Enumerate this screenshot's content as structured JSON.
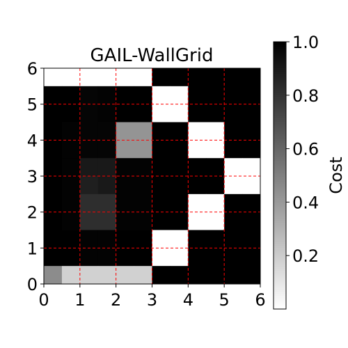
{
  "chart_data": {
    "type": "heatmap",
    "title": "GAIL-WallGrid",
    "xlabel": "",
    "ylabel": "",
    "xlim": [
      0,
      6
    ],
    "ylim": [
      0,
      6
    ],
    "x_ticks": [
      "0",
      "1",
      "2",
      "3",
      "4",
      "5",
      "6"
    ],
    "y_ticks": [
      "0",
      "1",
      "2",
      "3",
      "4",
      "5",
      "6"
    ],
    "grid": true,
    "grid_style": "dashed",
    "grid_color": "#ff0000",
    "cell_size": 0.5,
    "colormap": "gray_r",
    "colorbar": {
      "label": "Cost",
      "range": [
        0.0,
        1.0
      ],
      "ticks": [
        "0.2",
        "0.4",
        "0.6",
        "0.8",
        "1.0"
      ],
      "tick_values": [
        0.2,
        0.4,
        0.6,
        0.8,
        1.0
      ]
    },
    "rows_from_top": [
      [
        0.0,
        0.0,
        0.0,
        0.0,
        0.0,
        0.0,
        1.0,
        1.0,
        1.0,
        1.0,
        1.0,
        1.0
      ],
      [
        1.0,
        1.0,
        0.98,
        0.99,
        1.0,
        1.0,
        0.0,
        0.0,
        1.0,
        1.0,
        1.0,
        1.0
      ],
      [
        1.0,
        1.0,
        0.98,
        0.99,
        1.0,
        1.0,
        0.0,
        0.0,
        1.0,
        1.0,
        1.0,
        1.0
      ],
      [
        1.0,
        0.99,
        0.98,
        0.98,
        0.42,
        0.42,
        1.0,
        1.0,
        0.0,
        0.0,
        1.0,
        1.0
      ],
      [
        1.0,
        0.99,
        0.98,
        0.98,
        0.42,
        0.42,
        1.0,
        1.0,
        0.0,
        0.0,
        1.0,
        1.0
      ],
      [
        1.0,
        0.99,
        0.9,
        0.9,
        0.99,
        0.99,
        1.0,
        1.0,
        1.0,
        1.0,
        0.0,
        0.0
      ],
      [
        1.0,
        0.99,
        0.88,
        0.9,
        0.99,
        0.99,
        1.0,
        1.0,
        1.0,
        1.0,
        0.0,
        0.0
      ],
      [
        1.0,
        0.99,
        0.82,
        0.82,
        0.99,
        0.99,
        1.0,
        1.0,
        0.0,
        0.0,
        1.0,
        1.0
      ],
      [
        1.0,
        0.99,
        0.82,
        0.82,
        0.99,
        0.99,
        1.0,
        1.0,
        0.0,
        0.0,
        1.0,
        1.0
      ],
      [
        1.0,
        1.0,
        0.99,
        0.99,
        1.0,
        1.0,
        0.0,
        0.0,
        1.0,
        1.0,
        1.0,
        1.0
      ],
      [
        1.0,
        1.0,
        0.99,
        0.99,
        1.0,
        1.0,
        0.0,
        0.0,
        1.0,
        1.0,
        1.0,
        1.0
      ],
      [
        0.45,
        0.18,
        0.18,
        0.18,
        0.18,
        0.18,
        1.0,
        1.0,
        1.0,
        1.0,
        1.0,
        1.0
      ]
    ]
  }
}
